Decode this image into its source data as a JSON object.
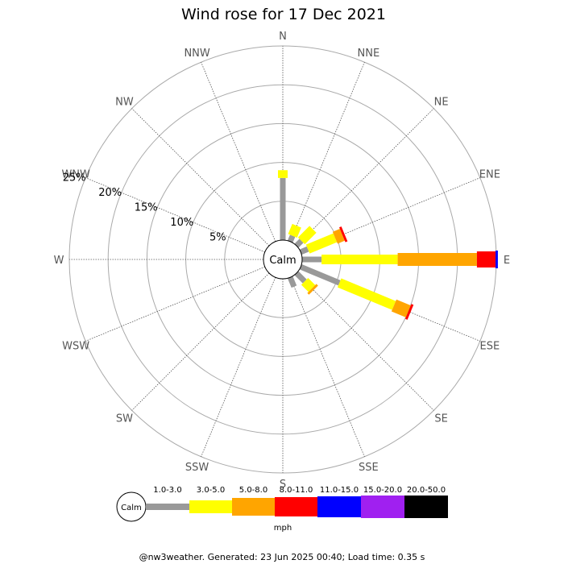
{
  "chart_data": {
    "type": "wind-rose",
    "title": "Wind rose for 17 Dec 2021",
    "unit": "mph",
    "calm_label": "Calm",
    "directions": [
      "N",
      "NNE",
      "NE",
      "ENE",
      "E",
      "ESE",
      "SE",
      "SSE",
      "S",
      "SSW",
      "SW",
      "WSW",
      "W",
      "WNW",
      "NW",
      "NNW"
    ],
    "radial_ticks": [
      5,
      10,
      15,
      20,
      25
    ],
    "radial_tick_labels": [
      "5%",
      "10%",
      "15%",
      "20%",
      "25%"
    ],
    "rmax": 25,
    "speed_bins": [
      {
        "label": "1.0-3.0",
        "color": "#999999"
      },
      {
        "label": "3.0-5.0",
        "color": "#ffff00"
      },
      {
        "label": "5.0-8.0",
        "color": "#ffa500"
      },
      {
        "label": "8.0-11.0",
        "color": "#ff0000"
      },
      {
        "label": "11.0-15.0",
        "color": "#0000ff"
      },
      {
        "label": "15.0-20.0",
        "color": "#a020f0"
      },
      {
        "label": "20.0-50.0",
        "color": "#000000"
      }
    ],
    "series": [
      {
        "direction": "N",
        "cumulative": [
          8.0,
          9.0
        ]
      },
      {
        "direction": "NNE",
        "cumulative": [
          0.8,
          2.2
        ]
      },
      {
        "direction": "NE",
        "cumulative": [
          0.9,
          3.0
        ]
      },
      {
        "direction": "ENE",
        "cumulative": [
          1.0,
          4.8,
          5.8,
          6.1
        ]
      },
      {
        "direction": "E",
        "cumulative": [
          2.5,
          12.3,
          22.5,
          24.9,
          25.2
        ]
      },
      {
        "direction": "ESE",
        "cumulative": [
          5.4,
          13.0,
          15.0,
          15.3
        ]
      },
      {
        "direction": "SE",
        "cumulative": [
          1.5,
          2.8,
          3.1
        ]
      },
      {
        "direction": "SSE",
        "cumulative": [
          1.3
        ]
      }
    ]
  },
  "footer": "@nw3weather. Generated: 23 Jun 2025 00:40; Load time: 0.35 s"
}
